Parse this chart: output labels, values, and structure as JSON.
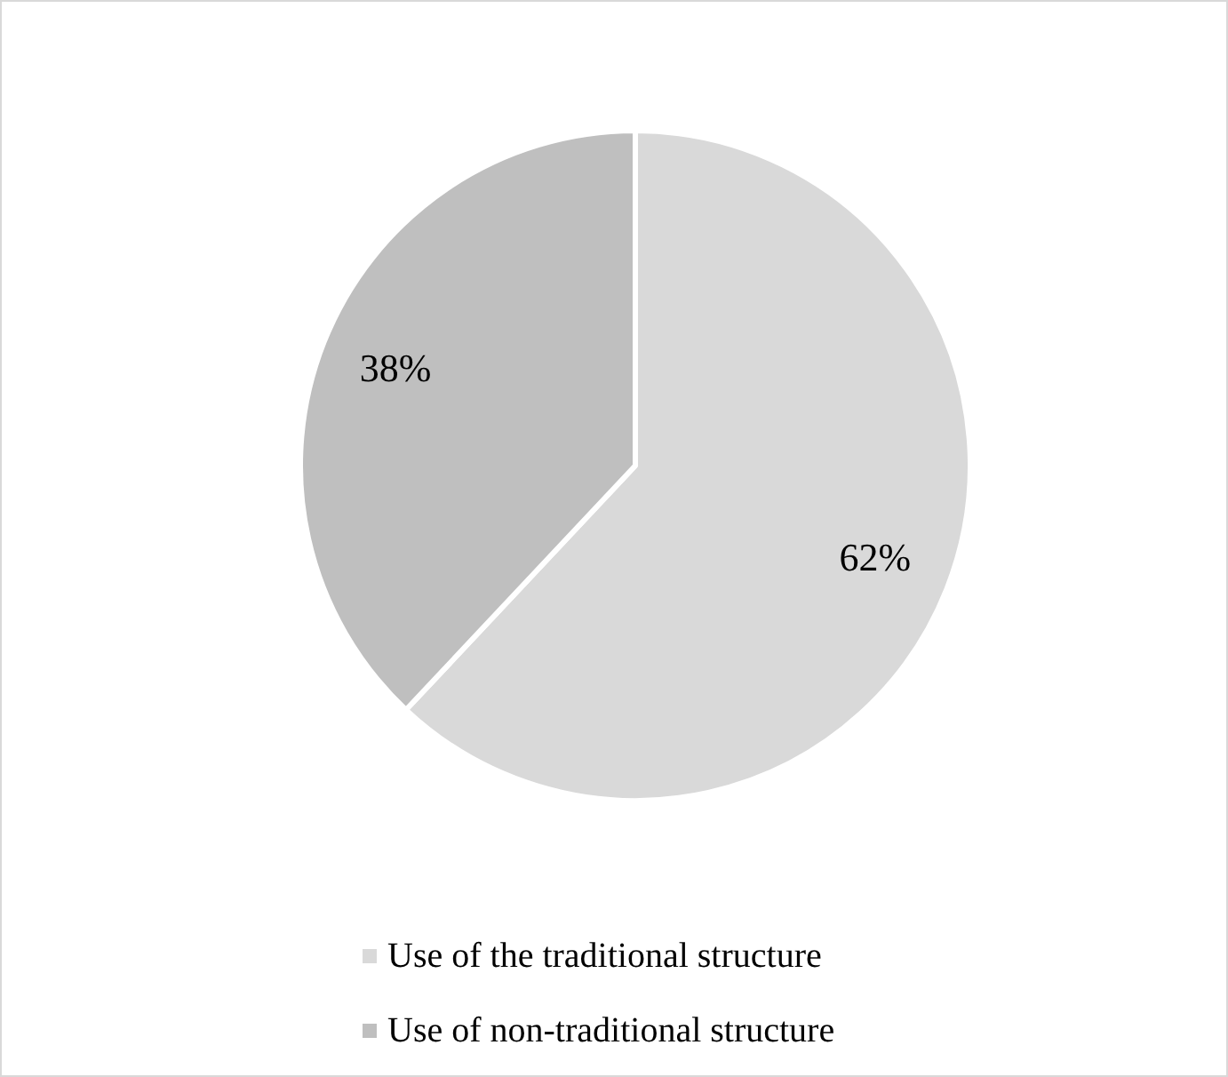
{
  "chart_data": {
    "type": "pie",
    "categories": [
      "Use of the traditional structure",
      "Use of non-traditional structure"
    ],
    "values": [
      62,
      38
    ],
    "colors": [
      "#d9d9d9",
      "#bfbfbf"
    ],
    "value_labels": [
      "62%",
      "38%"
    ],
    "legend": "bottom"
  }
}
